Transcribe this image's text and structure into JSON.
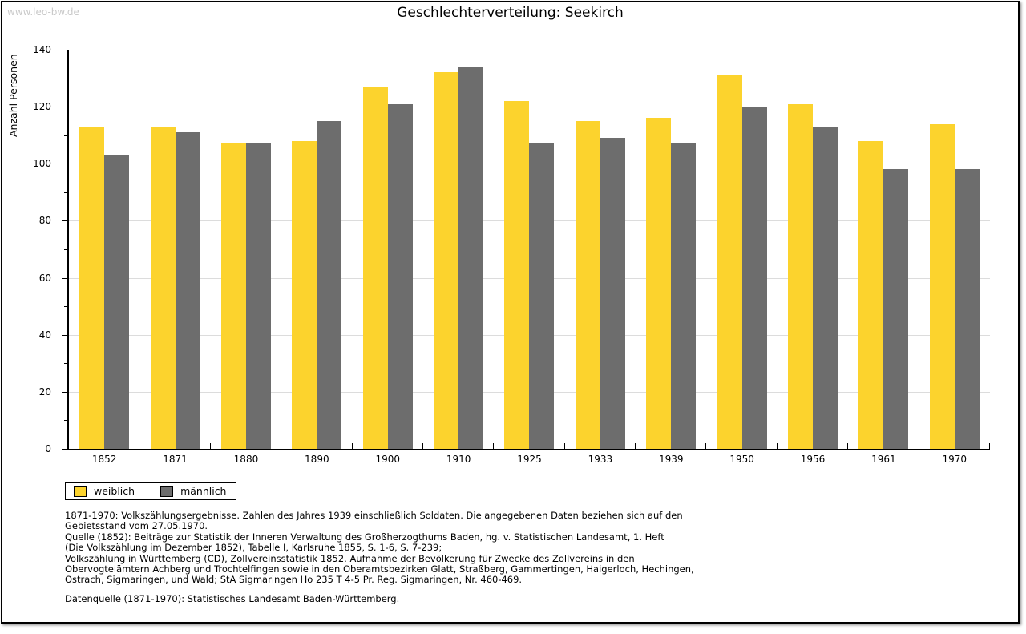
{
  "watermark": "www.leo-bw.de",
  "title": "Geschlechterverteilung: Seekirch",
  "chart_data": {
    "type": "bar",
    "title": "Geschlechterverteilung: Seekirch",
    "categories": [
      "1852",
      "1871",
      "1880",
      "1890",
      "1900",
      "1910",
      "1925",
      "1933",
      "1939",
      "1950",
      "1956",
      "1961",
      "1970"
    ],
    "series": [
      {
        "name": "weiblich",
        "color": "#FCD32D",
        "values": [
          113,
          113,
          107,
          108,
          127,
          132,
          122,
          115,
          116,
          131,
          121,
          108,
          114
        ]
      },
      {
        "name": "männlich",
        "color": "#6D6D6D",
        "values": [
          103,
          111,
          107,
          115,
          121,
          134,
          107,
          109,
          107,
          120,
          113,
          98,
          98
        ]
      }
    ],
    "xlabel": "",
    "ylabel": "Anzahl Personen",
    "ylim": [
      0,
      140
    ],
    "ytick_step": 20,
    "yminor_step": 10,
    "grid": true,
    "legend_position": "bottom-left"
  },
  "colors": {
    "grid": "#DCDCDC",
    "axis": "#000000",
    "watermark": "#C9C9C9",
    "page_border": "#000000"
  },
  "footnotes": {
    "lines": [
      "1871-1970: Volkszählungsergebnisse. Zahlen des Jahres 1939 einschließlich Soldaten. Die angegebenen Daten beziehen sich auf den",
      "Gebietsstand vom 27.05.1970.",
      "Quelle (1852): Beiträge zur Statistik der Inneren Verwaltung des Großherzogthums Baden, hg. v. Statistischen Landesamt, 1. Heft",
      "(Die Volkszählung im Dezember 1852), Tabelle I, Karlsruhe 1855, S. 1-6, S. 7-239;",
      "Volkszählung in Württemberg (CD), Zollvereinsstatistik 1852. Aufnahme der Bevölkerung für Zwecke des Zollvereins in den",
      "Obervogteiämtern Achberg und Trochtelfingen sowie in den Oberamtsbezirken Glatt, Straßberg, Gammertingen, Haigerloch, Hechingen,",
      "Ostrach, Sigmaringen, und Wald; StA Sigmaringen Ho 235 T 4-5 Pr. Reg. Sigmaringen, Nr. 460-469."
    ],
    "datasource": "Datenquelle (1871-1970): Statistisches Landesamt Baden-Württemberg."
  }
}
